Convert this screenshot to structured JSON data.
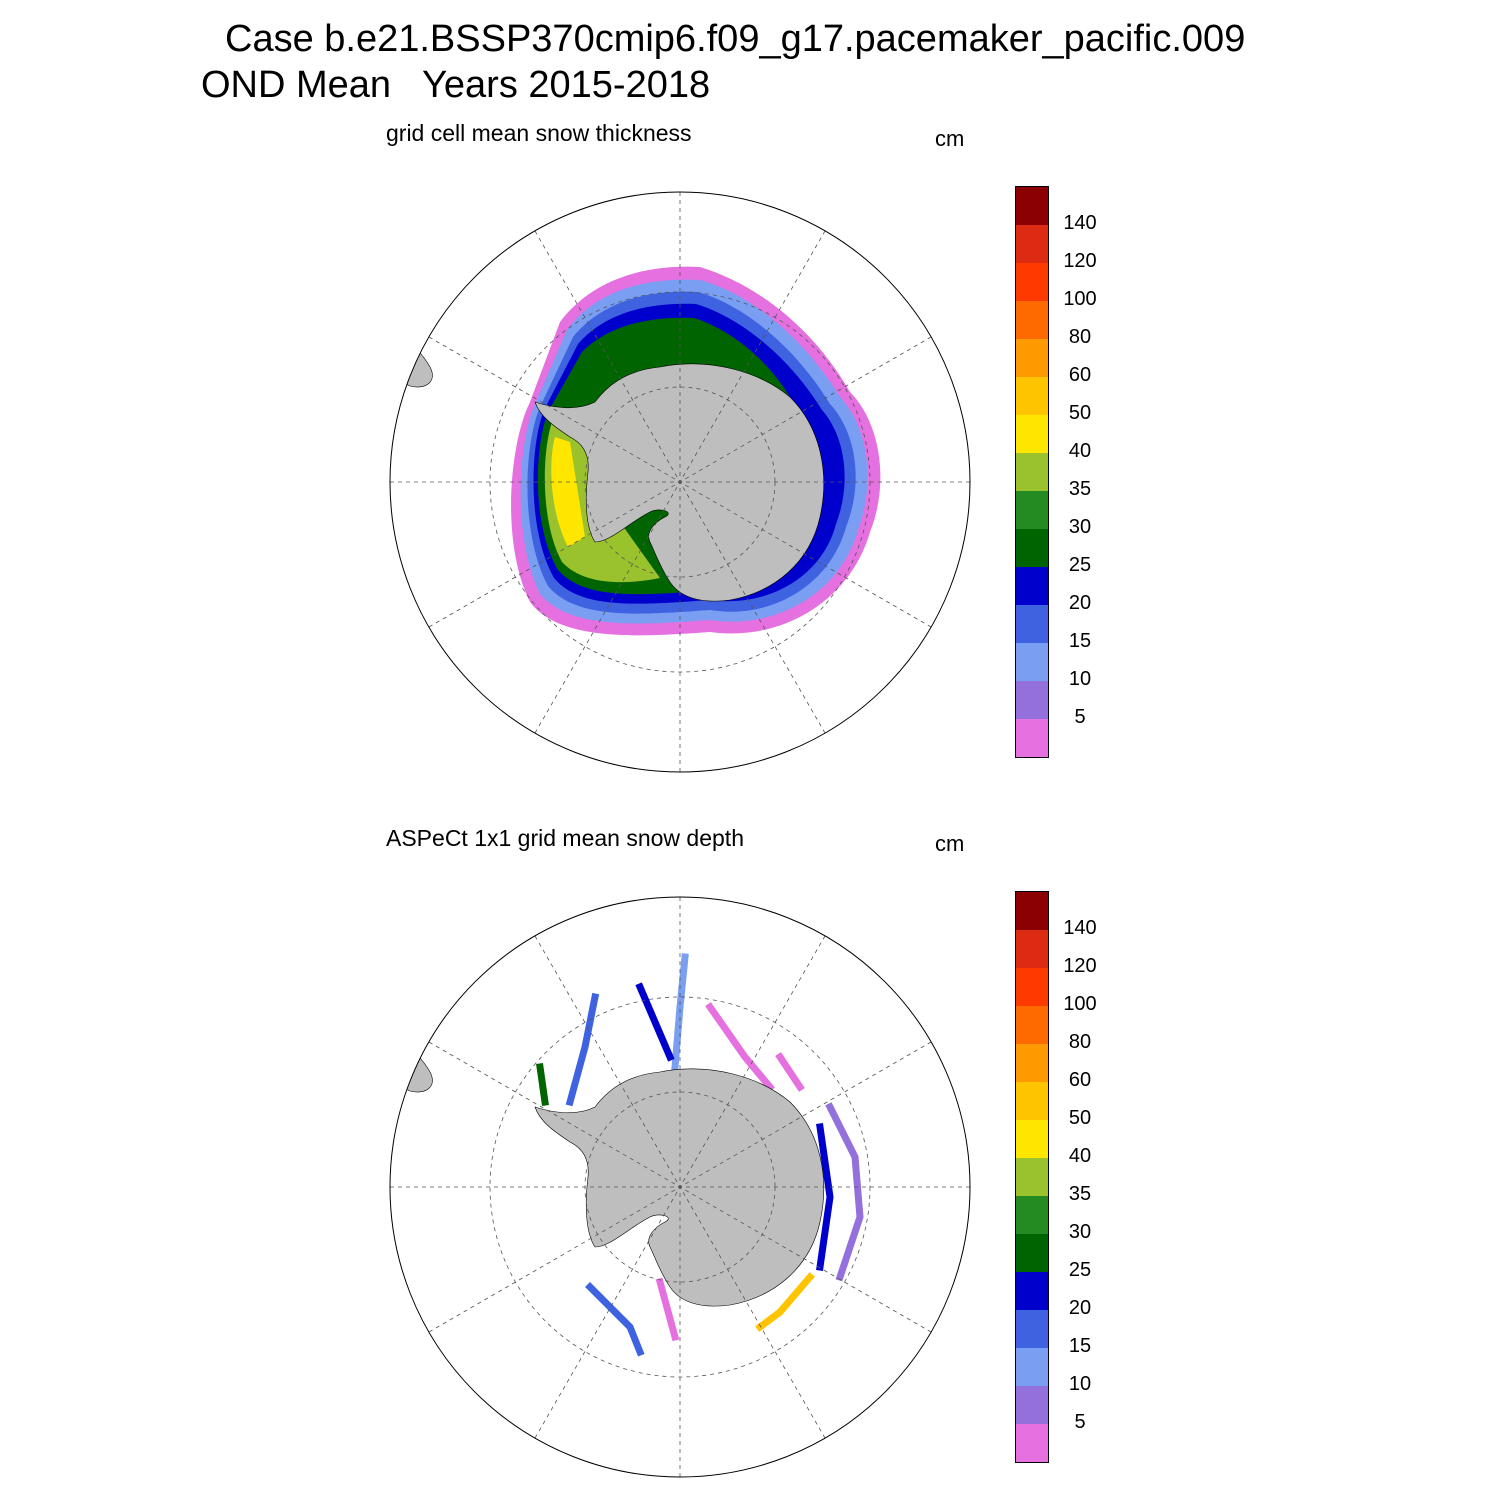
{
  "title": {
    "line1": "Case b.e21.BSSP370cmip6.f09_g17.pacemaker_pacific.009",
    "line2": "OND Mean   Years 2015-2018"
  },
  "panels": [
    {
      "title": "grid cell mean snow thickness",
      "units": "cm"
    },
    {
      "title": "ASPeCt 1x1 grid mean snow depth",
      "units": "cm"
    }
  ],
  "colorbar": {
    "labels": [
      "140",
      "120",
      "100",
      "80",
      "60",
      "50",
      "40",
      "35",
      "30",
      "25",
      "20",
      "15",
      "10",
      "5"
    ],
    "colors": [
      "#8b0000",
      "#dd2a12",
      "#ff3a00",
      "#ff6a00",
      "#ff9900",
      "#ffc400",
      "#ffe600",
      "#9ac22c",
      "#238b22",
      "#006400",
      "#0000cd",
      "#3f63e0",
      "#7a9ff2",
      "#9370db",
      "#e570e0"
    ]
  },
  "map": {
    "projection": "south polar stereographic",
    "land_color": "#bebebe",
    "grid": "dashed meridians every 30 degrees, dashed latitude circles"
  }
}
